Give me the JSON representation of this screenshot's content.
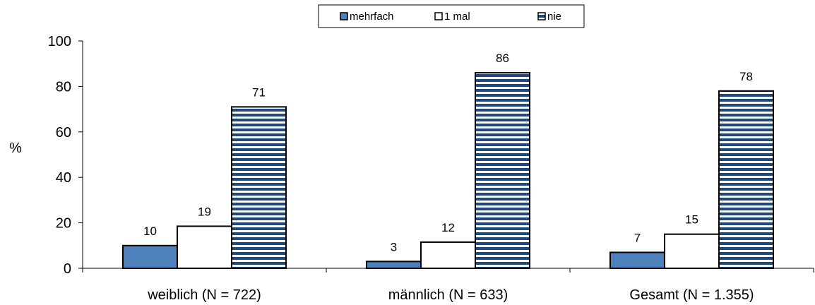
{
  "chart_data": {
    "type": "bar",
    "ylabel": "%",
    "ylim": [
      0,
      100
    ],
    "yticks": [
      0,
      20,
      40,
      60,
      80,
      100
    ],
    "grid": false,
    "legend_position": "top-right",
    "categories": [
      "weiblich (N = 722)",
      "männlich (N = 633)",
      "Gesamt (N = 1.355)"
    ],
    "series": [
      {
        "name": "mehrfach",
        "values": [
          10,
          3,
          7
        ],
        "labels": [
          "10",
          "3",
          "7"
        ],
        "color": "#4f81bd",
        "pattern": "solid"
      },
      {
        "name": "1 mal",
        "values": [
          18.5,
          11.5,
          15
        ],
        "labels": [
          "19",
          "12",
          "15"
        ],
        "color": "#ffffff",
        "pattern": "solid"
      },
      {
        "name": "nie",
        "values": [
          71,
          86,
          78
        ],
        "labels": [
          "71",
          "86",
          "78"
        ],
        "color": "#1f497d",
        "pattern": "horizontal-stripes"
      }
    ]
  }
}
